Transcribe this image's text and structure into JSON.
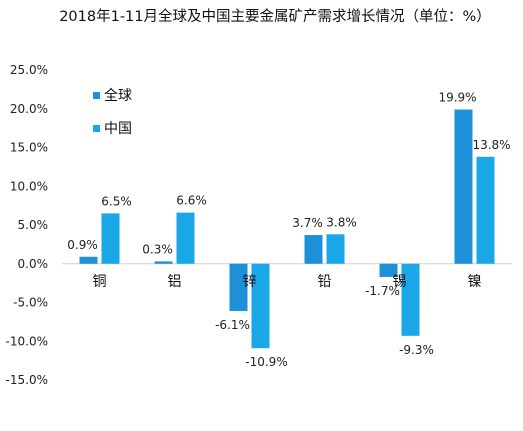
{
  "chart_data": {
    "type": "bar",
    "title": "2018年1-11月全球及中国主要金属矿产需求增长情况（单位：%）",
    "categories": [
      "铜",
      "铝",
      "锌",
      "铅",
      "锡",
      "镍"
    ],
    "series": [
      {
        "name": "全球",
        "values": [
          0.9,
          0.3,
          -6.1,
          3.7,
          -1.7,
          19.9
        ],
        "labels": [
          "0.9%",
          "0.3%",
          "-6.1%",
          "3.7%",
          "-1.7%",
          "19.9%"
        ]
      },
      {
        "name": "中国",
        "values": [
          6.5,
          6.6,
          -10.9,
          3.8,
          -9.3,
          13.8
        ],
        "labels": [
          "6.5%",
          "6.6%",
          "-10.9%",
          "3.8%",
          "-9.3%",
          "13.8%"
        ]
      }
    ],
    "ylim": [
      -15,
      25
    ],
    "yticks": [
      25,
      20,
      15,
      10,
      5,
      0,
      -5,
      -10,
      -15
    ],
    "ytick_labels": [
      "25.0%",
      "20.0%",
      "15.0%",
      "10.0%",
      "5.0%",
      "0.0%",
      "-5.0%",
      "-10.0%",
      "-15.0%"
    ],
    "grid": false,
    "legend": "top-left",
    "colors": {
      "全球": "#1e90d8",
      "中国": "#1aa7e8"
    }
  }
}
